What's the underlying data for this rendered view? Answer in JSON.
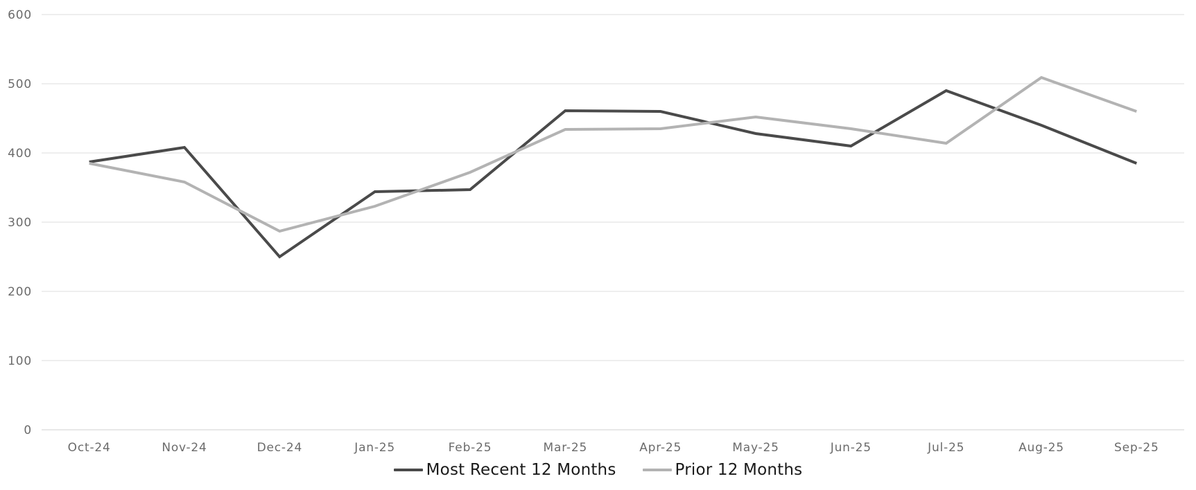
{
  "chart_data": {
    "type": "line",
    "title": "",
    "categories": [
      "Oct-24",
      "Nov-24",
      "Dec-24",
      "Jan-25",
      "Feb-25",
      "Mar-25",
      "Apr-25",
      "May-25",
      "Jun-25",
      "Jul-25",
      "Aug-25",
      "Sep-25"
    ],
    "series": [
      {
        "name": "Most Recent 12 Months",
        "color": "#4a4a4a",
        "values": [
          387,
          408,
          250,
          344,
          347,
          461,
          460,
          428,
          410,
          490,
          440,
          385
        ]
      },
      {
        "name": "Prior 12 Months",
        "color": "#b3b3b3",
        "values": [
          385,
          358,
          287,
          323,
          372,
          434,
          435,
          452,
          435,
          414,
          509,
          460
        ]
      }
    ],
    "y_ticks": [
      0,
      100,
      200,
      300,
      400,
      500,
      600
    ],
    "ylim": [
      0,
      600
    ],
    "xlabel": "",
    "ylabel": "",
    "grid": "horizontal",
    "legend_position": "bottom-center",
    "draw_order_note": "Prior 12 Months line drawn on top at crossings"
  },
  "colors": {
    "background": "#ffffff",
    "gridline": "#e3e3e3",
    "zero_axis_line": "#d9d9d9",
    "tick_label": "#6b6b6b",
    "legend_text": "#1a1a1a"
  }
}
